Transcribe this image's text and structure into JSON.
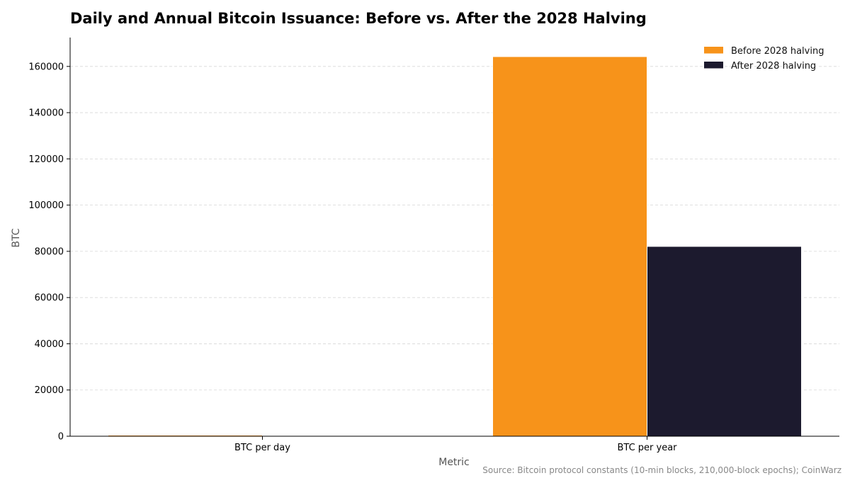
{
  "chart_data": {
    "type": "bar",
    "title": "Daily and Annual Bitcoin Issuance: Before vs. After the 2028 Halving",
    "xlabel": "Metric",
    "ylabel": "BTC",
    "categories": [
      "BTC per day",
      "BTC per year"
    ],
    "series": [
      {
        "name": "Before 2028 halving",
        "color": "#F7931A",
        "values": [
          450,
          164250
        ]
      },
      {
        "name": "After 2028 halving",
        "color": "#1C1A2E",
        "values": [
          225,
          82125
        ]
      }
    ],
    "ylim": [
      0,
      172500
    ],
    "yticks": [
      "0",
      "20000",
      "40000",
      "60000",
      "80000",
      "100000",
      "120000",
      "140000",
      "160000"
    ],
    "grid": "horizontal dashed",
    "legend_position": "top-right",
    "source": "Source: Bitcoin protocol constants (10-min blocks, 210,000-block epochs); CoinWarz"
  }
}
